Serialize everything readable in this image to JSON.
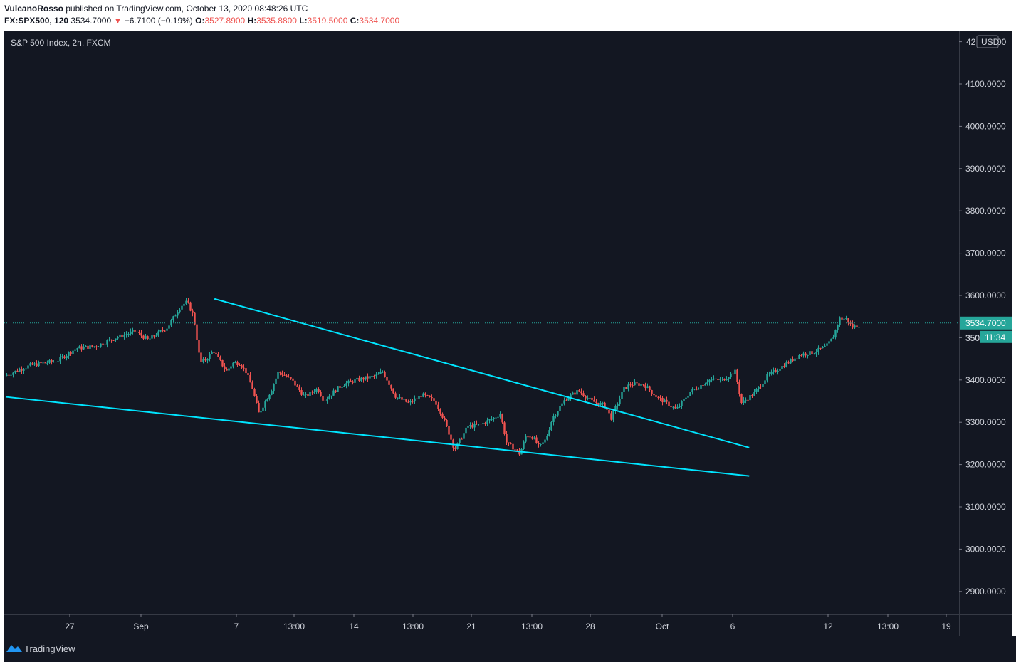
{
  "header": {
    "author": "VulcanoRosso",
    "published_text": "published on TradingView.com, October 13, 2020 08:48:26 UTC",
    "symbol": "FX:SPX500, 120",
    "last": "3534.7000",
    "change_arrow": "▼",
    "change": "−6.7100 (−0.19%)",
    "o_label": "O:",
    "o_value": "3527.8900",
    "h_label": "H:",
    "h_value": "3535.8800",
    "l_label": "L:",
    "l_value": "3519.5000",
    "c_label": "C:",
    "c_value": "3534.7000"
  },
  "legend_title": "S&P 500 Index, 2h, FXCM",
  "currency": "USD",
  "price_label": "3534.7000",
  "countdown": "11:34",
  "price_label_partial": "350",
  "top_label_partial_a": "42",
  "top_label_partial_b": "00",
  "footer": {
    "brand": "TradingView"
  },
  "colors": {
    "background": "#131722",
    "up": "#26a69a",
    "down": "#ef5350",
    "trendline": "#00e5ff",
    "axis_text": "#d1d4dc"
  },
  "chart_data": {
    "type": "candlestick",
    "title": "S&P 500 Index, 2h, FXCM",
    "y_ticks": [
      2900,
      3000,
      3100,
      3200,
      3300,
      3400,
      3500,
      3600,
      3700,
      3800,
      3900,
      4000,
      4100,
      4200
    ],
    "y_tick_labels": [
      "2900.0000",
      "3000.0000",
      "3100.0000",
      "3200.0000",
      "3300.0000",
      "3400.0000",
      "3500.0000",
      "3600.0000",
      "3700.0000",
      "3800.0000",
      "3900.0000",
      "4000.0000",
      "4100.0000",
      "4200.0000"
    ],
    "ylim": [
      2845,
      4215
    ],
    "x_ticks": [
      "27",
      "Sep",
      "7",
      "13:00",
      "14",
      "13:00",
      "21",
      "13:00",
      "28",
      "Oct",
      "6",
      "12",
      "13:00",
      "19"
    ],
    "last_price": 3534.7,
    "price_path": [
      [
        0,
        3410
      ],
      [
        4,
        3435
      ],
      [
        8,
        3445
      ],
      [
        11,
        3475
      ],
      [
        14,
        3480
      ],
      [
        17,
        3500
      ],
      [
        20,
        3515
      ],
      [
        22,
        3495
      ],
      [
        25,
        3525
      ],
      [
        27,
        3575
      ],
      [
        28,
        3585
      ],
      [
        29,
        3550
      ],
      [
        30,
        3440
      ],
      [
        31,
        3450
      ],
      [
        32,
        3470
      ],
      [
        34,
        3420
      ],
      [
        35,
        3440
      ],
      [
        36,
        3440
      ],
      [
        37,
        3420
      ],
      [
        38,
        3380
      ],
      [
        39,
        3320
      ],
      [
        41,
        3380
      ],
      [
        42,
        3420
      ],
      [
        44,
        3400
      ],
      [
        46,
        3360
      ],
      [
        47,
        3370
      ],
      [
        48,
        3380
      ],
      [
        49,
        3350
      ],
      [
        51,
        3380
      ],
      [
        52,
        3390
      ],
      [
        54,
        3400
      ],
      [
        57,
        3410
      ],
      [
        58,
        3420
      ],
      [
        60,
        3360
      ],
      [
        62,
        3345
      ],
      [
        64,
        3365
      ],
      [
        66,
        3350
      ],
      [
        67,
        3320
      ],
      [
        68,
        3280
      ],
      [
        69,
        3235
      ],
      [
        71,
        3290
      ],
      [
        73,
        3295
      ],
      [
        75,
        3310
      ],
      [
        76,
        3320
      ],
      [
        77,
        3250
      ],
      [
        78,
        3240
      ],
      [
        79,
        3225
      ],
      [
        80,
        3270
      ],
      [
        81,
        3265
      ],
      [
        82,
        3240
      ],
      [
        83,
        3260
      ],
      [
        84,
        3310
      ],
      [
        86,
        3355
      ],
      [
        88,
        3375
      ],
      [
        90,
        3350
      ],
      [
        92,
        3340
      ],
      [
        93,
        3310
      ],
      [
        95,
        3380
      ],
      [
        96,
        3390
      ],
      [
        98,
        3390
      ],
      [
        100,
        3360
      ],
      [
        102,
        3340
      ],
      [
        103,
        3330
      ],
      [
        105,
        3370
      ],
      [
        108,
        3400
      ],
      [
        110,
        3400
      ],
      [
        111,
        3410
      ],
      [
        112,
        3420
      ],
      [
        113,
        3345
      ],
      [
        115,
        3370
      ],
      [
        117,
        3410
      ],
      [
        119,
        3430
      ],
      [
        121,
        3450
      ],
      [
        122,
        3460
      ],
      [
        124,
        3465
      ],
      [
        126,
        3480
      ],
      [
        127,
        3500
      ],
      [
        128,
        3545
      ],
      [
        129,
        3545
      ],
      [
        130,
        3525
      ],
      [
        131,
        3530
      ]
    ],
    "price_path_domain": [
      0,
      131
    ],
    "trendlines": [
      {
        "name": "upper",
        "from": [
          32,
          3592
        ],
        "to": [
          114,
          3240
        ]
      },
      {
        "name": "lower",
        "from": [
          0,
          3360
        ],
        "to": [
          114,
          3173
        ]
      }
    ]
  }
}
